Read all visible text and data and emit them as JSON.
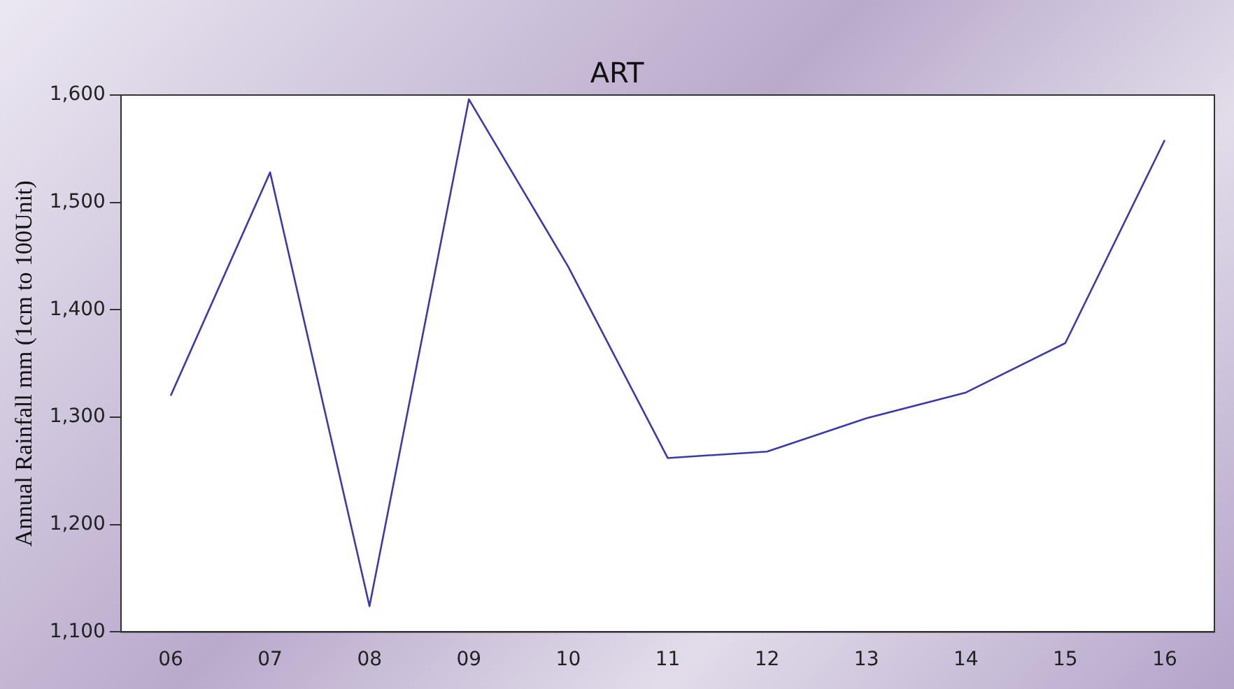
{
  "chart_data": {
    "type": "line",
    "title": "ART",
    "ylabel": "Annual Rainfall mm (1cm to 100Unit)",
    "categories": [
      "06",
      "07",
      "08",
      "09",
      "10",
      "11",
      "12",
      "13",
      "14",
      "15",
      "16"
    ],
    "series": [
      {
        "color": "#3a3aa8",
        "values": [
          1320,
          1528,
          1124,
          1596,
          1440,
          1262,
          1268,
          1299,
          1323,
          1369,
          1558
        ]
      }
    ],
    "ylim": [
      1100,
      1600
    ],
    "yticks": [
      {
        "value": 1100,
        "label": "1,100"
      },
      {
        "value": 1200,
        "label": "1,200"
      },
      {
        "value": 1300,
        "label": "1,300"
      },
      {
        "value": 1400,
        "label": "1,400"
      },
      {
        "value": 1500,
        "label": "1,500"
      },
      {
        "value": 1600,
        "label": "1,600"
      }
    ],
    "grid": false,
    "legend": false,
    "marker": "none",
    "line_style": "solid"
  }
}
